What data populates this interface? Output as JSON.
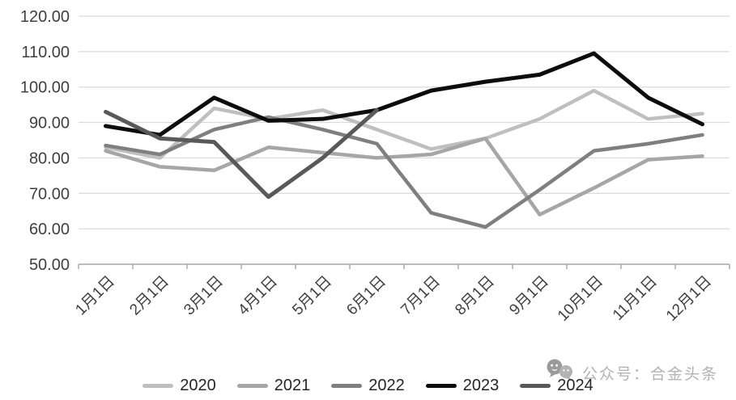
{
  "chart_data": {
    "type": "line",
    "title": "",
    "xlabel": "",
    "ylabel": "",
    "categories": [
      "1月1日",
      "2月1日",
      "3月1日",
      "4月1日",
      "5月1日",
      "6月1日",
      "7月1日",
      "8月1日",
      "9月1日",
      "10月1日",
      "11月1日",
      "12月1日"
    ],
    "series": [
      {
        "name": "2020",
        "color": "#bfbfbf",
        "stroke_width": 4.5,
        "values": [
          83,
          80,
          94,
          91,
          93.5,
          88,
          82.5,
          85.5,
          91,
          99,
          91,
          92.5
        ]
      },
      {
        "name": "2021",
        "color": "#a6a6a6",
        "stroke_width": 4.5,
        "values": [
          82,
          77.5,
          76.5,
          83,
          81.5,
          80,
          81,
          85.5,
          64,
          71.5,
          79.5,
          80.5
        ]
      },
      {
        "name": "2022",
        "color": "#7f7f7f",
        "stroke_width": 4.5,
        "values": [
          83.5,
          81,
          88,
          91.5,
          88,
          84,
          64.5,
          60.5,
          71,
          82,
          84,
          86.5
        ]
      },
      {
        "name": "2023",
        "color": "#0d0d0d",
        "stroke_width": 5,
        "values": [
          89,
          86.5,
          97,
          90.5,
          91,
          93.5,
          99,
          101.5,
          103.5,
          109.5,
          97,
          89.5
        ]
      },
      {
        "name": "2024",
        "color": "#595959",
        "stroke_width": 5,
        "values": [
          93,
          85.5,
          84.5,
          69,
          80,
          93.5
        ]
      }
    ],
    "ylim": [
      50,
      120
    ],
    "ytick_step": 10,
    "y_tick_labels": [
      "120.00",
      "110.00",
      "100.00",
      "90.00",
      "80.00",
      "70.00",
      "60.00",
      "50.00"
    ],
    "grid": true,
    "legend_position": "bottom",
    "x_label_rotation": -45
  },
  "watermark": {
    "icon": "wechat-icon",
    "text": "公众号：合金头条"
  },
  "colors": {
    "background": "#ffffff",
    "gridline": "#d9d9d9",
    "axis_line": "#a6a6a6",
    "tick_label": "#404040",
    "legend_label": "#262626",
    "watermark": "#b3b3b3",
    "watermark_icon": "#9b9b9b"
  }
}
